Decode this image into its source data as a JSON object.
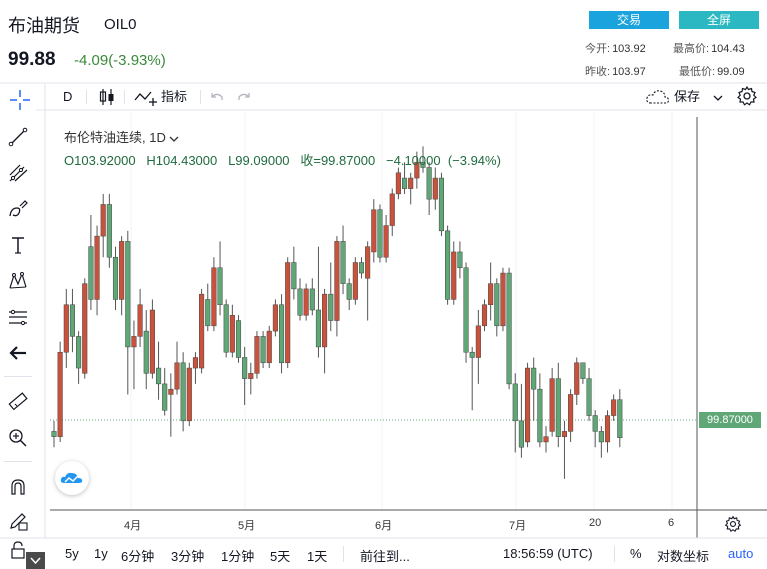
{
  "header": {
    "name": "布油期货",
    "code": "OIL0",
    "price": "99.88",
    "change": "-4.09(-3.93%)",
    "trade_label": "交易",
    "fullscreen_label": "全屏",
    "stats": {
      "open_label": "今开:",
      "open": "103.92",
      "high_label": "最高价:",
      "high": "104.43",
      "prev_label": "昨收:",
      "prev": "103.97",
      "low_label": "最低价:",
      "low": "99.09"
    }
  },
  "toolbar": {
    "interval": "D",
    "indicators_label": "指标",
    "save_label": "保存"
  },
  "legend": {
    "title": "布伦特油连续, 1D",
    "ohlc": "O103.92000   H104.43000   L99.09000   收=99.87000   −4.10000  (−3.94%)"
  },
  "last_price_tag": "99.87000",
  "x_axis_labels": [
    "4月",
    "5月",
    "6月",
    "7月",
    "20",
    "6"
  ],
  "bottom_bar": {
    "ranges": [
      "5y",
      "1y",
      "6分钟",
      "3分钟",
      "1分钟",
      "5天",
      "1天"
    ],
    "goto_label": "前往到...",
    "time": "18:56:59 (UTC)",
    "percent_label": "%",
    "log_label": "对数坐标",
    "auto_label": "auto"
  },
  "colors": {
    "up": "#c8523c",
    "down": "#5fa776",
    "accent": "#1aa3dd"
  },
  "chart_data": {
    "type": "candlestick",
    "title": "布伦特油连续, 1D",
    "x_labels": [
      "4月",
      "5月",
      "6月",
      "7月",
      "20",
      "6"
    ],
    "ohlc": [
      [
        100.5,
        101.5,
        99.0,
        100.0
      ],
      [
        100.0,
        109.0,
        99.5,
        108.0
      ],
      [
        108.0,
        114.0,
        106.5,
        112.5
      ],
      [
        112.5,
        114.0,
        108.0,
        109.5
      ],
      [
        109.5,
        110.0,
        105.0,
        106.5
      ],
      [
        106.0,
        115.0,
        105.5,
        114.5
      ],
      [
        118.0,
        121.0,
        112.0,
        113.0
      ],
      [
        113.0,
        120.0,
        111.5,
        119.0
      ],
      [
        119.0,
        123.0,
        117.0,
        122.0
      ],
      [
        122.0,
        123.0,
        116.0,
        117.0
      ],
      [
        117.0,
        118.0,
        112.0,
        113.0
      ],
      [
        113.0,
        119.0,
        111.5,
        118.5
      ],
      [
        118.5,
        119.5,
        104.0,
        108.5
      ],
      [
        108.5,
        111.0,
        104.5,
        109.5
      ],
      [
        109.5,
        114.0,
        108.5,
        112.5
      ],
      [
        110.0,
        112.0,
        104.5,
        106.0
      ],
      [
        106.0,
        113.0,
        105.5,
        112.0
      ],
      [
        106.5,
        109.0,
        103.5,
        105.0
      ],
      [
        105.0,
        106.5,
        102.0,
        102.5
      ],
      [
        104.0,
        106.0,
        100.0,
        104.5
      ],
      [
        104.5,
        109.0,
        104.0,
        107.0
      ],
      [
        107.0,
        108.0,
        100.5,
        101.5
      ],
      [
        101.5,
        107.0,
        101.0,
        106.5
      ],
      [
        106.5,
        108.0,
        105.0,
        107.5
      ],
      [
        106.5,
        114.0,
        106.0,
        113.5
      ],
      [
        113.0,
        114.5,
        110.0,
        110.5
      ],
      [
        110.5,
        117.0,
        110.0,
        116.0
      ],
      [
        116.0,
        118.5,
        111.5,
        112.5
      ],
      [
        112.5,
        113.0,
        107.5,
        108.0
      ],
      [
        108.0,
        112.5,
        107.5,
        111.5
      ],
      [
        111.0,
        111.5,
        107.0,
        107.5
      ],
      [
        107.5,
        108.5,
        103.0,
        105.5
      ],
      [
        105.5,
        107.0,
        104.0,
        106.0
      ],
      [
        106.0,
        110.0,
        105.5,
        109.5
      ],
      [
        109.5,
        110.0,
        106.5,
        107.0
      ],
      [
        107.0,
        110.5,
        106.5,
        110.0
      ],
      [
        110.0,
        113.0,
        109.5,
        112.5
      ],
      [
        112.5,
        113.5,
        106.0,
        107.0
      ],
      [
        107.0,
        117.0,
        106.5,
        116.5
      ],
      [
        116.5,
        118.0,
        113.0,
        114.0
      ],
      [
        114.0,
        115.0,
        111.0,
        111.5
      ],
      [
        111.5,
        114.5,
        111.0,
        114.0
      ],
      [
        114.0,
        115.0,
        111.5,
        112.0
      ],
      [
        112.0,
        118.0,
        107.5,
        108.5
      ],
      [
        108.5,
        114.0,
        106.0,
        113.5
      ],
      [
        113.5,
        116.5,
        110.0,
        111.0
      ],
      [
        111.0,
        119.0,
        109.5,
        118.5
      ],
      [
        118.5,
        120.0,
        113.5,
        114.5
      ],
      [
        114.5,
        115.0,
        112.0,
        113.0
      ],
      [
        113.0,
        117.0,
        112.5,
        116.5
      ],
      [
        116.5,
        117.0,
        115.0,
        115.5
      ],
      [
        115.0,
        118.5,
        111.0,
        118.0
      ],
      [
        117.5,
        122.5,
        116.5,
        121.5
      ],
      [
        121.5,
        122.0,
        116.5,
        117.0
      ],
      [
        117.0,
        121.0,
        116.5,
        120.0
      ],
      [
        120.0,
        123.5,
        119.0,
        123.0
      ],
      [
        123.0,
        125.5,
        122.5,
        125.0
      ],
      [
        124.5,
        126.0,
        123.0,
        123.5
      ],
      [
        123.5,
        125.0,
        122.0,
        124.5
      ],
      [
        124.5,
        127.0,
        123.5,
        126.0
      ],
      [
        126.0,
        127.5,
        125.0,
        125.5
      ],
      [
        125.5,
        126.0,
        121.0,
        122.5
      ],
      [
        122.5,
        125.5,
        121.5,
        124.5
      ],
      [
        124.5,
        125.0,
        119.0,
        119.5
      ],
      [
        119.5,
        120.0,
        112.5,
        113.0
      ],
      [
        113.0,
        118.5,
        112.5,
        117.5
      ],
      [
        117.5,
        118.5,
        115.0,
        116.0
      ],
      [
        116.0,
        116.5,
        107.0,
        108.0
      ],
      [
        108.0,
        108.5,
        102.5,
        107.5
      ],
      [
        107.5,
        112.0,
        105.0,
        110.5
      ],
      [
        110.5,
        113.0,
        110.0,
        112.5
      ],
      [
        112.5,
        116.5,
        111.0,
        114.5
      ],
      [
        114.5,
        115.0,
        109.5,
        110.5
      ],
      [
        110.5,
        116.0,
        110.0,
        115.5
      ],
      [
        115.5,
        116.0,
        104.5,
        105.0
      ],
      [
        105.0,
        106.0,
        98.5,
        101.5
      ],
      [
        101.5,
        105.0,
        98.0,
        99.0
      ],
      [
        99.5,
        107.0,
        99.0,
        106.5
      ],
      [
        106.5,
        107.5,
        101.5,
        104.5
      ],
      [
        104.5,
        106.0,
        99.0,
        99.5
      ],
      [
        99.5,
        101.0,
        98.5,
        100.0
      ],
      [
        100.5,
        106.5,
        100.0,
        105.5
      ],
      [
        105.5,
        107.0,
        99.0,
        100.0
      ],
      [
        100.0,
        101.5,
        96.0,
        100.5
      ],
      [
        100.5,
        104.5,
        99.5,
        104.0
      ],
      [
        104.0,
        107.5,
        103.0,
        107.0
      ],
      [
        107.0,
        107.0,
        105.0,
        105.5
      ],
      [
        105.5,
        106.5,
        101.5,
        102.0
      ],
      [
        102.0,
        102.5,
        99.0,
        100.5
      ],
      [
        100.5,
        101.0,
        98.0,
        99.5
      ],
      [
        99.5,
        102.5,
        98.5,
        102.0
      ],
      [
        102.0,
        104.0,
        101.5,
        103.5
      ],
      [
        103.5,
        104.5,
        99.0,
        99.9
      ]
    ],
    "y_range": [
      94,
      130
    ],
    "last_price": 99.87,
    "grid": true
  }
}
